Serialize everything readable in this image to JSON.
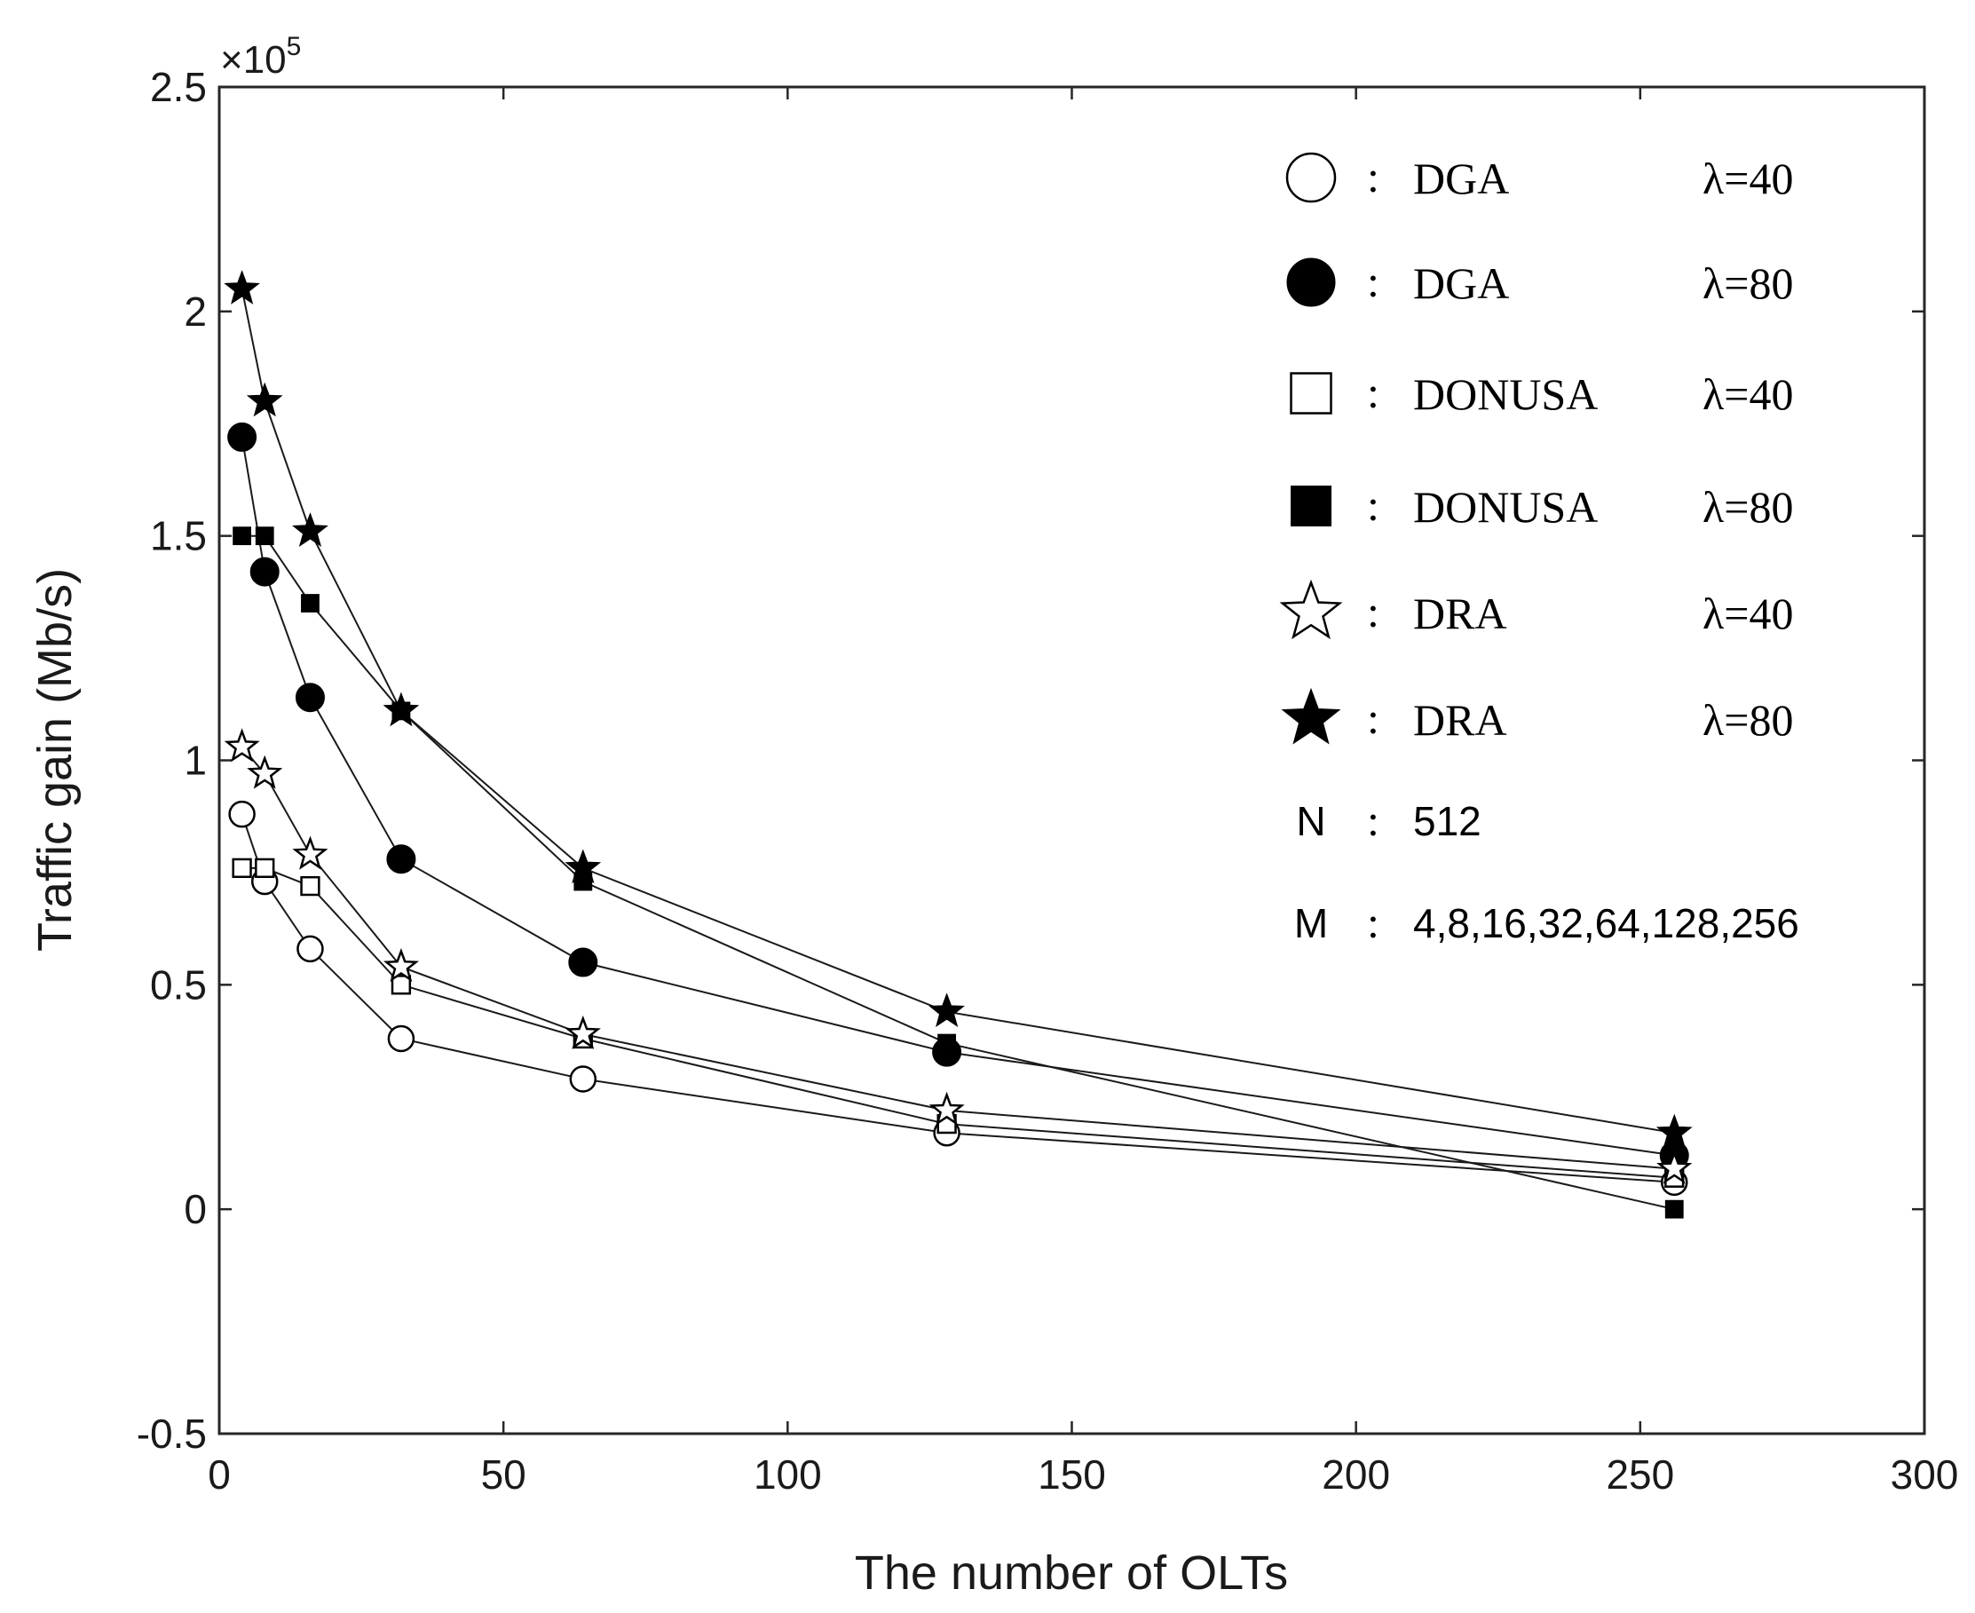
{
  "chart_data": {
    "type": "line",
    "xlabel": "The number of OLTs",
    "ylabel": "Traffic gain (Mb/s)",
    "y_multiplier_base": "×10",
    "y_multiplier_exp": "5",
    "xlim": [
      0,
      300
    ],
    "ylim": [
      -0.5,
      2.5
    ],
    "xticks": [
      0,
      50,
      100,
      150,
      200,
      250,
      300
    ],
    "xtick_labels": [
      "0",
      "50",
      "100",
      "150",
      "200",
      "250",
      "300"
    ],
    "yticks": [
      -0.5,
      0,
      0.5,
      1,
      1.5,
      2,
      2.5
    ],
    "ytick_labels": [
      "-0.5",
      "0",
      "0.5",
      "1",
      "1.5",
      "2",
      "2.5"
    ],
    "x": [
      4,
      8,
      16,
      32,
      64,
      128,
      256
    ],
    "series": [
      {
        "name": "DGA",
        "lambda": "λ=40",
        "marker": "circle-open",
        "values": [
          0.88,
          0.73,
          0.58,
          0.38,
          0.29,
          0.17,
          0.06
        ]
      },
      {
        "name": "DGA",
        "lambda": "λ=80",
        "marker": "circle-filled",
        "values": [
          1.72,
          1.42,
          1.14,
          0.78,
          0.55,
          0.35,
          0.12
        ]
      },
      {
        "name": "DONUSA",
        "lambda": "λ=40",
        "marker": "square-open",
        "values": [
          0.76,
          0.76,
          0.72,
          0.5,
          0.38,
          0.19,
          0.07
        ]
      },
      {
        "name": "DONUSA",
        "lambda": "λ=80",
        "marker": "square-filled",
        "values": [
          1.5,
          1.5,
          1.35,
          1.11,
          0.73,
          0.37,
          0.0
        ]
      },
      {
        "name": "DRA",
        "lambda": "λ=40",
        "marker": "star-open",
        "values": [
          1.03,
          0.97,
          0.79,
          0.54,
          0.39,
          0.22,
          0.09
        ]
      },
      {
        "name": "DRA",
        "lambda": "λ=80",
        "marker": "star-filled",
        "values": [
          2.05,
          1.8,
          1.51,
          1.11,
          0.76,
          0.44,
          0.17
        ]
      }
    ],
    "legend_separator": ":",
    "legend_params": [
      {
        "key": "N",
        "value": "512"
      },
      {
        "key": "M",
        "value": "4,8,16,32,64,128,256"
      }
    ]
  }
}
